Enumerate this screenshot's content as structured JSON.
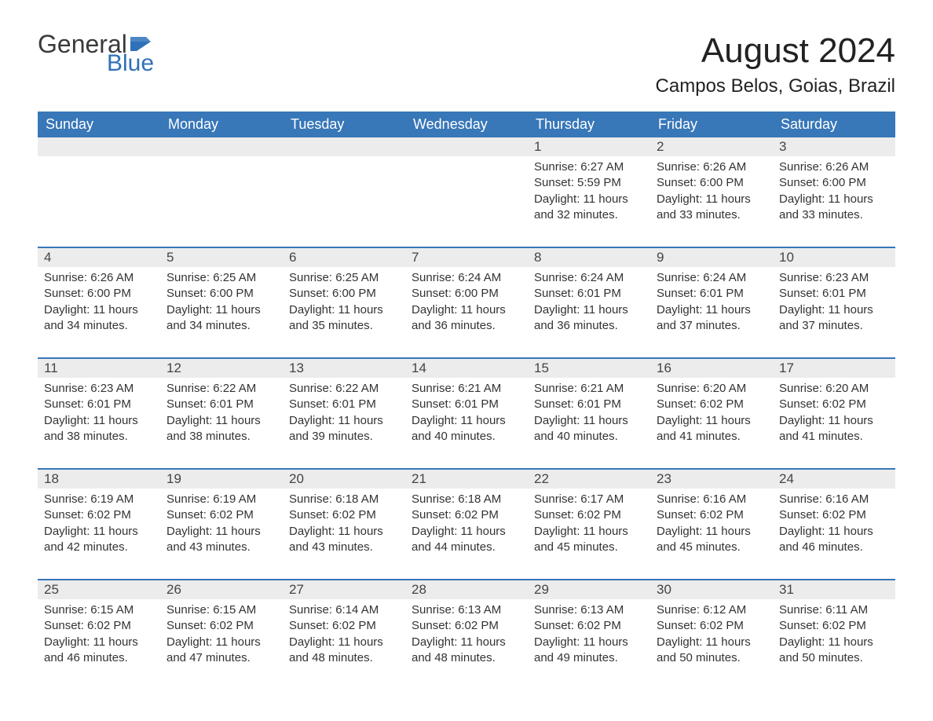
{
  "logo": {
    "text1": "General",
    "text2": "Blue",
    "flag_color": "#2f71b8",
    "text1_color": "#3a3a3a"
  },
  "title": "August 2024",
  "location": "Campos Belos, Goias, Brazil",
  "colors": {
    "header_bg": "#3877b8",
    "header_text": "#ffffff",
    "daynum_bg": "#ececec",
    "week_border": "#3877b8",
    "body_text": "#333333",
    "background": "#ffffff"
  },
  "fonts": {
    "title_size_pt": 33,
    "location_size_pt": 18,
    "dayheader_size_pt": 14,
    "daynum_size_pt": 13,
    "body_size_pt": 11
  },
  "layout": {
    "columns": 7,
    "rows": 5
  },
  "day_headers": [
    "Sunday",
    "Monday",
    "Tuesday",
    "Wednesday",
    "Thursday",
    "Friday",
    "Saturday"
  ],
  "weeks": [
    [
      {
        "n": "",
        "sunrise": "",
        "sunset": "",
        "daylight": ""
      },
      {
        "n": "",
        "sunrise": "",
        "sunset": "",
        "daylight": ""
      },
      {
        "n": "",
        "sunrise": "",
        "sunset": "",
        "daylight": ""
      },
      {
        "n": "",
        "sunrise": "",
        "sunset": "",
        "daylight": ""
      },
      {
        "n": "1",
        "sunrise": "6:27 AM",
        "sunset": "5:59 PM",
        "daylight": "11 hours and 32 minutes."
      },
      {
        "n": "2",
        "sunrise": "6:26 AM",
        "sunset": "6:00 PM",
        "daylight": "11 hours and 33 minutes."
      },
      {
        "n": "3",
        "sunrise": "6:26 AM",
        "sunset": "6:00 PM",
        "daylight": "11 hours and 33 minutes."
      }
    ],
    [
      {
        "n": "4",
        "sunrise": "6:26 AM",
        "sunset": "6:00 PM",
        "daylight": "11 hours and 34 minutes."
      },
      {
        "n": "5",
        "sunrise": "6:25 AM",
        "sunset": "6:00 PM",
        "daylight": "11 hours and 34 minutes."
      },
      {
        "n": "6",
        "sunrise": "6:25 AM",
        "sunset": "6:00 PM",
        "daylight": "11 hours and 35 minutes."
      },
      {
        "n": "7",
        "sunrise": "6:24 AM",
        "sunset": "6:00 PM",
        "daylight": "11 hours and 36 minutes."
      },
      {
        "n": "8",
        "sunrise": "6:24 AM",
        "sunset": "6:01 PM",
        "daylight": "11 hours and 36 minutes."
      },
      {
        "n": "9",
        "sunrise": "6:24 AM",
        "sunset": "6:01 PM",
        "daylight": "11 hours and 37 minutes."
      },
      {
        "n": "10",
        "sunrise": "6:23 AM",
        "sunset": "6:01 PM",
        "daylight": "11 hours and 37 minutes."
      }
    ],
    [
      {
        "n": "11",
        "sunrise": "6:23 AM",
        "sunset": "6:01 PM",
        "daylight": "11 hours and 38 minutes."
      },
      {
        "n": "12",
        "sunrise": "6:22 AM",
        "sunset": "6:01 PM",
        "daylight": "11 hours and 38 minutes."
      },
      {
        "n": "13",
        "sunrise": "6:22 AM",
        "sunset": "6:01 PM",
        "daylight": "11 hours and 39 minutes."
      },
      {
        "n": "14",
        "sunrise": "6:21 AM",
        "sunset": "6:01 PM",
        "daylight": "11 hours and 40 minutes."
      },
      {
        "n": "15",
        "sunrise": "6:21 AM",
        "sunset": "6:01 PM",
        "daylight": "11 hours and 40 minutes."
      },
      {
        "n": "16",
        "sunrise": "6:20 AM",
        "sunset": "6:02 PM",
        "daylight": "11 hours and 41 minutes."
      },
      {
        "n": "17",
        "sunrise": "6:20 AM",
        "sunset": "6:02 PM",
        "daylight": "11 hours and 41 minutes."
      }
    ],
    [
      {
        "n": "18",
        "sunrise": "6:19 AM",
        "sunset": "6:02 PM",
        "daylight": "11 hours and 42 minutes."
      },
      {
        "n": "19",
        "sunrise": "6:19 AM",
        "sunset": "6:02 PM",
        "daylight": "11 hours and 43 minutes."
      },
      {
        "n": "20",
        "sunrise": "6:18 AM",
        "sunset": "6:02 PM",
        "daylight": "11 hours and 43 minutes."
      },
      {
        "n": "21",
        "sunrise": "6:18 AM",
        "sunset": "6:02 PM",
        "daylight": "11 hours and 44 minutes."
      },
      {
        "n": "22",
        "sunrise": "6:17 AM",
        "sunset": "6:02 PM",
        "daylight": "11 hours and 45 minutes."
      },
      {
        "n": "23",
        "sunrise": "6:16 AM",
        "sunset": "6:02 PM",
        "daylight": "11 hours and 45 minutes."
      },
      {
        "n": "24",
        "sunrise": "6:16 AM",
        "sunset": "6:02 PM",
        "daylight": "11 hours and 46 minutes."
      }
    ],
    [
      {
        "n": "25",
        "sunrise": "6:15 AM",
        "sunset": "6:02 PM",
        "daylight": "11 hours and 46 minutes."
      },
      {
        "n": "26",
        "sunrise": "6:15 AM",
        "sunset": "6:02 PM",
        "daylight": "11 hours and 47 minutes."
      },
      {
        "n": "27",
        "sunrise": "6:14 AM",
        "sunset": "6:02 PM",
        "daylight": "11 hours and 48 minutes."
      },
      {
        "n": "28",
        "sunrise": "6:13 AM",
        "sunset": "6:02 PM",
        "daylight": "11 hours and 48 minutes."
      },
      {
        "n": "29",
        "sunrise": "6:13 AM",
        "sunset": "6:02 PM",
        "daylight": "11 hours and 49 minutes."
      },
      {
        "n": "30",
        "sunrise": "6:12 AM",
        "sunset": "6:02 PM",
        "daylight": "11 hours and 50 minutes."
      },
      {
        "n": "31",
        "sunrise": "6:11 AM",
        "sunset": "6:02 PM",
        "daylight": "11 hours and 50 minutes."
      }
    ]
  ],
  "labels": {
    "sunrise": "Sunrise: ",
    "sunset": "Sunset: ",
    "daylight": "Daylight: "
  }
}
